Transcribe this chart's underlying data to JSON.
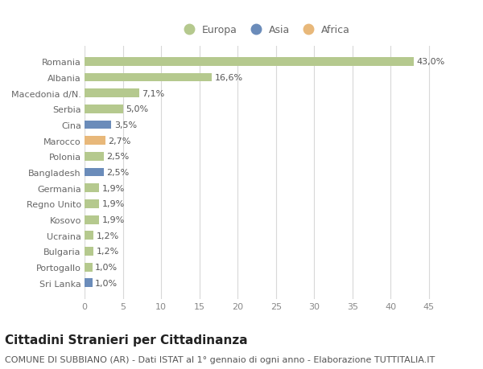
{
  "countries": [
    "Romania",
    "Albania",
    "Macedonia d/N.",
    "Serbia",
    "Cina",
    "Marocco",
    "Polonia",
    "Bangladesh",
    "Germania",
    "Regno Unito",
    "Kosovo",
    "Ucraina",
    "Bulgaria",
    "Portogallo",
    "Sri Lanka"
  ],
  "values": [
    43.0,
    16.6,
    7.1,
    5.0,
    3.5,
    2.7,
    2.5,
    2.5,
    1.9,
    1.9,
    1.9,
    1.2,
    1.2,
    1.0,
    1.0
  ],
  "labels": [
    "43,0%",
    "16,6%",
    "7,1%",
    "5,0%",
    "3,5%",
    "2,7%",
    "2,5%",
    "2,5%",
    "1,9%",
    "1,9%",
    "1,9%",
    "1,2%",
    "1,2%",
    "1,0%",
    "1,0%"
  ],
  "continents": [
    "Europa",
    "Europa",
    "Europa",
    "Europa",
    "Asia",
    "Africa",
    "Europa",
    "Asia",
    "Europa",
    "Europa",
    "Europa",
    "Europa",
    "Europa",
    "Europa",
    "Asia"
  ],
  "colors": {
    "Europa": "#b5c98e",
    "Asia": "#6b8cba",
    "Africa": "#e8b87a"
  },
  "legend_order": [
    "Europa",
    "Asia",
    "Africa"
  ],
  "xlim": [
    0,
    47
  ],
  "xticks": [
    0,
    5,
    10,
    15,
    20,
    25,
    30,
    35,
    40,
    45
  ],
  "title": "Cittadini Stranieri per Cittadinanza",
  "subtitle": "COMUNE DI SUBBIANO (AR) - Dati ISTAT al 1° gennaio di ogni anno - Elaborazione TUTTITALIA.IT",
  "background_color": "#ffffff",
  "grid_color": "#d8d8d8",
  "bar_height": 0.55,
  "title_fontsize": 11,
  "subtitle_fontsize": 8,
  "label_fontsize": 8,
  "tick_fontsize": 8,
  "legend_fontsize": 9,
  "ytick_color": "#666666",
  "xtick_color": "#888888",
  "label_color": "#555555"
}
